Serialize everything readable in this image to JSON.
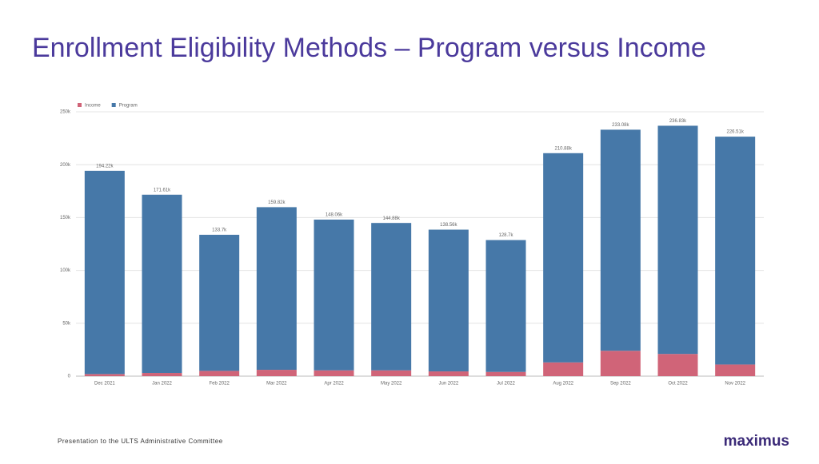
{
  "chart_data": {
    "type": "stacked-bar",
    "title": "Enrollment Eligibility Methods – Program versus Income",
    "categories": [
      "Dec 2021",
      "Jan 2022",
      "Feb 2022",
      "Mar 2022",
      "Apr 2022",
      "May 2022",
      "Jun 2022",
      "Jul 2022",
      "Aug 2022",
      "Sep 2022",
      "Oct 2022",
      "Nov 2022"
    ],
    "series": [
      {
        "name": "Income",
        "color": "#d06478",
        "values": [
          2000,
          3000,
          5000,
          6000,
          5500,
          5500,
          4500,
          4000,
          13000,
          24000,
          21000,
          11000
        ]
      },
      {
        "name": "Program",
        "color": "#4678a8",
        "values": [
          192220,
          168610,
          128700,
          153820,
          142560,
          139380,
          134060,
          124700,
          197880,
          209080,
          215830,
          215510
        ]
      }
    ],
    "total_labels": [
      "194.22k",
      "171.61k",
      "133.7k",
      "159.82k",
      "148.06k",
      "144.88k",
      "138.56k",
      "128.7k",
      "210.88k",
      "233.08k",
      "236.83k",
      "226.51k"
    ],
    "ylim": [
      0,
      250000
    ],
    "yticks": [
      0,
      {
        "value": 50000,
        "label": "50k"
      },
      {
        "value": 100000,
        "label": "100k"
      },
      {
        "value": 150000,
        "label": "150k"
      },
      {
        "value": 200000,
        "label": "200k"
      },
      {
        "value": 250000,
        "label": "250k"
      }
    ],
    "grid": true
  },
  "footer": "Presentation to the ULTS Administrative Committee",
  "logo": "maximus"
}
